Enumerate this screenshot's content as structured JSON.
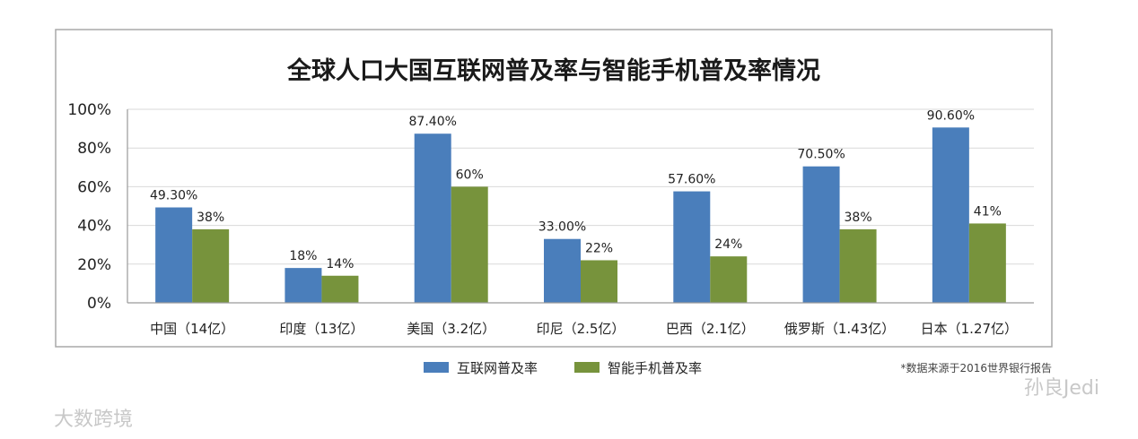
{
  "chart_data": {
    "type": "bar",
    "title": "全球人口大国互联网普及率与智能手机普及率情况",
    "categories": [
      "中国（14亿）",
      "印度（13亿）",
      "美国（3.2亿）",
      "印尼（2.5亿）",
      "巴西（2.1亿）",
      "俄罗斯（1.43亿）",
      "日本（1.27亿）"
    ],
    "series": [
      {
        "name": "互联网普及率",
        "color": "#4a7ebb",
        "values": [
          49.3,
          18,
          87.4,
          33.0,
          57.6,
          70.5,
          90.6
        ],
        "labels": [
          "49.30%",
          "18%",
          "87.40%",
          "33.00%",
          "57.60%",
          "70.50%",
          "90.60%"
        ]
      },
      {
        "name": "智能手机普及率",
        "color": "#77933c",
        "values": [
          38,
          14,
          60,
          22,
          24,
          38,
          41
        ],
        "labels": [
          "38%",
          "14%",
          "60%",
          "22%",
          "24%",
          "38%",
          "41%"
        ]
      }
    ],
    "ylim": [
      0,
      100
    ],
    "yticks": [
      0,
      20,
      40,
      60,
      80,
      100
    ],
    "ytick_labels": [
      "0%",
      "20%",
      "40%",
      "60%",
      "80%",
      "100%"
    ],
    "grid": true,
    "legend_position": "bottom-center"
  },
  "note": "*数据来源于2016世界银行报告",
  "watermarks": {
    "left": "大数跨境",
    "right": "孙良Jedi"
  }
}
